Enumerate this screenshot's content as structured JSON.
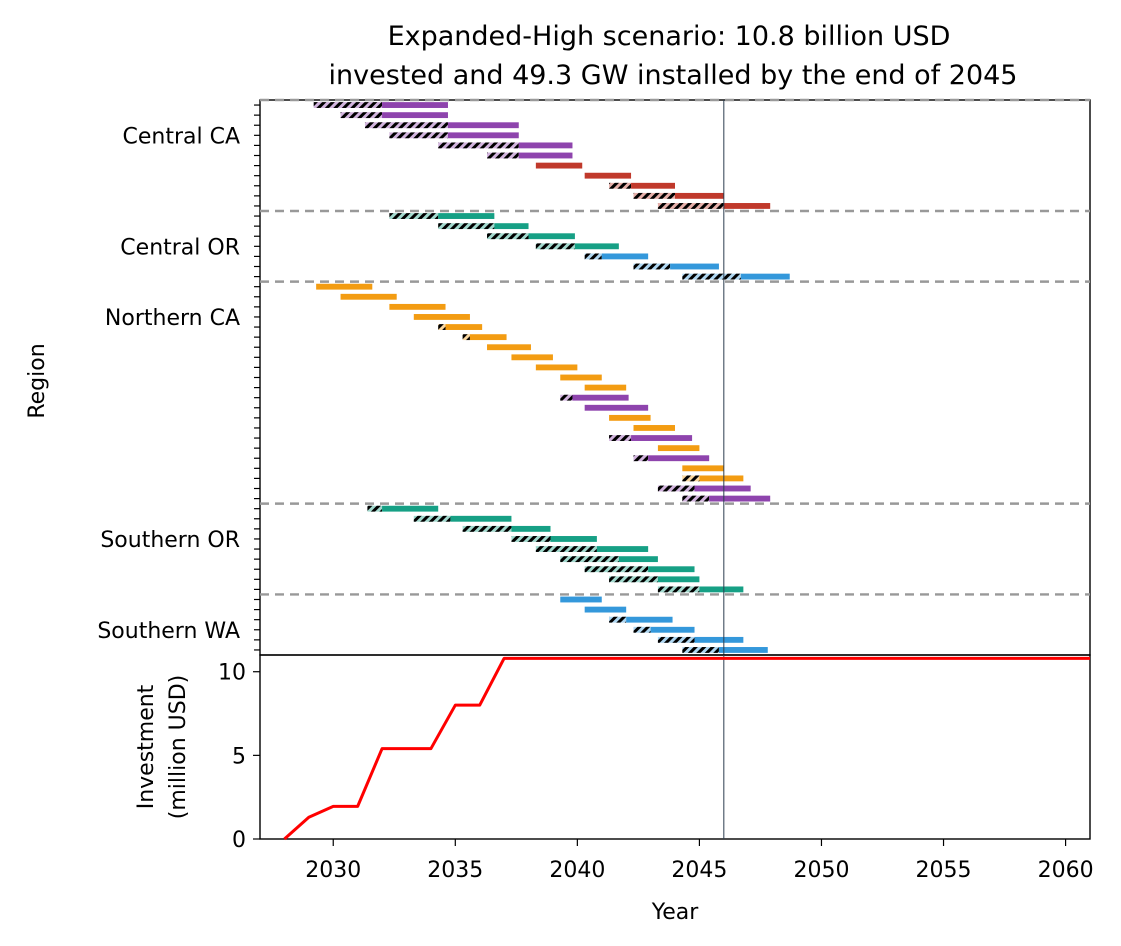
{
  "figure": {
    "title_line1": "Expanded-High scenario: 10.8 billion USD",
    "title_line2": "invested and 49.3 GW installed by the end of 2045"
  },
  "colors": {
    "central_ca": "#8e44ad",
    "central_ca_alt": "#c0392b",
    "central_or": "#16a085",
    "central_or_alt": "#3498db",
    "northern_ca": "#f39c12",
    "northern_ca_alt": "#8e44ad",
    "southern_or": "#16a085",
    "southern_wa": "#3498db",
    "investment_line": "#ff0000",
    "separator": "#999999",
    "marker_line": "#2c3e50"
  },
  "chart_data": [
    {
      "type": "gantt",
      "ylabel": "Region",
      "xlim": [
        2027,
        2061
      ],
      "marker_year": 46,
      "regions": [
        {
          "name": "Central CA",
          "label_row": 3
        },
        {
          "name": "Central OR",
          "label_row": 14
        },
        {
          "name": "Northern CA",
          "label_row": 21
        },
        {
          "name": "Southern OR",
          "label_row": 43
        },
        {
          "name": "Southern WA",
          "label_row": 52
        }
      ],
      "separators": [
        0,
        11,
        18,
        40,
        49
      ],
      "total_rows": 55,
      "tasks": [
        {
          "row": 0,
          "pre_start": 2029.2,
          "start": 2032.0,
          "end": 2034.7,
          "color": "central_ca"
        },
        {
          "row": 1,
          "pre_start": 2030.3,
          "start": 2032.0,
          "end": 2034.7,
          "color": "central_ca"
        },
        {
          "row": 2,
          "pre_start": 2031.3,
          "start": 2034.7,
          "end": 2037.6,
          "color": "central_ca"
        },
        {
          "row": 3,
          "pre_start": 2032.3,
          "start": 2034.7,
          "end": 2037.6,
          "color": "central_ca"
        },
        {
          "row": 4,
          "pre_start": 2034.3,
          "start": 2037.6,
          "end": 2039.8,
          "color": "central_ca"
        },
        {
          "row": 5,
          "pre_start": 2036.3,
          "start": 2037.6,
          "end": 2039.8,
          "color": "central_ca"
        },
        {
          "row": 6,
          "pre_start": 2038.3,
          "start": 2038.3,
          "end": 2040.2,
          "color": "central_ca_alt"
        },
        {
          "row": 7,
          "pre_start": 2040.3,
          "start": 2040.3,
          "end": 2042.2,
          "color": "central_ca_alt"
        },
        {
          "row": 8,
          "pre_start": 2041.3,
          "start": 2042.2,
          "end": 2044.0,
          "color": "central_ca_alt"
        },
        {
          "row": 9,
          "pre_start": 2042.3,
          "start": 2044.0,
          "end": 2046.0,
          "color": "central_ca_alt"
        },
        {
          "row": 10,
          "pre_start": 2043.3,
          "start": 2046.0,
          "end": 2047.9,
          "color": "central_ca_alt"
        },
        {
          "row": 11,
          "pre_start": 2032.3,
          "start": 2034.3,
          "end": 2036.6,
          "color": "central_or"
        },
        {
          "row": 12,
          "pre_start": 2034.3,
          "start": 2036.6,
          "end": 2038.0,
          "color": "central_or"
        },
        {
          "row": 13,
          "pre_start": 2036.3,
          "start": 2038.0,
          "end": 2039.9,
          "color": "central_or"
        },
        {
          "row": 14,
          "pre_start": 2038.3,
          "start": 2039.9,
          "end": 2041.7,
          "color": "central_or"
        },
        {
          "row": 15,
          "pre_start": 2040.3,
          "start": 2041.0,
          "end": 2042.9,
          "color": "central_or_alt"
        },
        {
          "row": 16,
          "pre_start": 2042.3,
          "start": 2043.8,
          "end": 2045.8,
          "color": "central_or_alt"
        },
        {
          "row": 17,
          "pre_start": 2044.3,
          "start": 2046.7,
          "end": 2048.7,
          "color": "central_or_alt"
        },
        {
          "row": 18,
          "pre_start": 2029.3,
          "start": 2029.3,
          "end": 2031.6,
          "color": "northern_ca"
        },
        {
          "row": 19,
          "pre_start": 2030.3,
          "start": 2030.3,
          "end": 2032.6,
          "color": "northern_ca"
        },
        {
          "row": 20,
          "pre_start": 2032.3,
          "start": 2032.3,
          "end": 2034.6,
          "color": "northern_ca"
        },
        {
          "row": 21,
          "pre_start": 2033.3,
          "start": 2033.3,
          "end": 2035.6,
          "color": "northern_ca"
        },
        {
          "row": 22,
          "pre_start": 2034.3,
          "start": 2034.6,
          "end": 2036.1,
          "color": "northern_ca"
        },
        {
          "row": 23,
          "pre_start": 2035.3,
          "start": 2035.6,
          "end": 2037.1,
          "color": "northern_ca"
        },
        {
          "row": 24,
          "pre_start": 2036.3,
          "start": 2036.3,
          "end": 2038.1,
          "color": "northern_ca"
        },
        {
          "row": 25,
          "pre_start": 2037.3,
          "start": 2037.3,
          "end": 2039.0,
          "color": "northern_ca"
        },
        {
          "row": 26,
          "pre_start": 2038.3,
          "start": 2038.3,
          "end": 2040.0,
          "color": "northern_ca"
        },
        {
          "row": 27,
          "pre_start": 2039.3,
          "start": 2039.3,
          "end": 2041.0,
          "color": "northern_ca"
        },
        {
          "row": 28,
          "pre_start": 2040.3,
          "start": 2040.3,
          "end": 2042.0,
          "color": "northern_ca"
        },
        {
          "row": 29,
          "pre_start": 2039.3,
          "start": 2039.8,
          "end": 2042.1,
          "color": "northern_ca_alt"
        },
        {
          "row": 30,
          "pre_start": 2040.3,
          "start": 2040.3,
          "end": 2042.9,
          "color": "northern_ca_alt"
        },
        {
          "row": 31,
          "pre_start": 2041.3,
          "start": 2041.3,
          "end": 2043.0,
          "color": "northern_ca"
        },
        {
          "row": 32,
          "pre_start": 2042.3,
          "start": 2042.3,
          "end": 2044.0,
          "color": "northern_ca"
        },
        {
          "row": 33,
          "pre_start": 2041.3,
          "start": 2042.2,
          "end": 2044.7,
          "color": "northern_ca_alt"
        },
        {
          "row": 34,
          "pre_start": 2043.3,
          "start": 2043.3,
          "end": 2045.0,
          "color": "northern_ca"
        },
        {
          "row": 35,
          "pre_start": 2042.3,
          "start": 2042.9,
          "end": 2045.4,
          "color": "northern_ca_alt"
        },
        {
          "row": 36,
          "pre_start": 2044.3,
          "start": 2044.3,
          "end": 2046.0,
          "color": "northern_ca"
        },
        {
          "row": 37,
          "pre_start": 2044.3,
          "start": 2045.0,
          "end": 2046.8,
          "color": "northern_ca"
        },
        {
          "row": 38,
          "pre_start": 2043.3,
          "start": 2044.8,
          "end": 2047.1,
          "color": "northern_ca_alt"
        },
        {
          "row": 39,
          "pre_start": 2044.3,
          "start": 2045.4,
          "end": 2047.9,
          "color": "northern_ca_alt"
        },
        {
          "row": 40,
          "pre_start": 2031.4,
          "start": 2032.0,
          "end": 2034.3,
          "color": "southern_or"
        },
        {
          "row": 41,
          "pre_start": 2033.3,
          "start": 2034.8,
          "end": 2037.3,
          "color": "southern_or"
        },
        {
          "row": 42,
          "pre_start": 2035.3,
          "start": 2037.3,
          "end": 2038.9,
          "color": "southern_or"
        },
        {
          "row": 43,
          "pre_start": 2037.3,
          "start": 2038.9,
          "end": 2040.8,
          "color": "southern_or"
        },
        {
          "row": 44,
          "pre_start": 2038.3,
          "start": 2040.8,
          "end": 2042.9,
          "color": "southern_or"
        },
        {
          "row": 45,
          "pre_start": 2039.3,
          "start": 2041.7,
          "end": 2043.3,
          "color": "southern_or"
        },
        {
          "row": 46,
          "pre_start": 2040.3,
          "start": 2042.9,
          "end": 2044.8,
          "color": "southern_or"
        },
        {
          "row": 47,
          "pre_start": 2041.3,
          "start": 2043.3,
          "end": 2045.0,
          "color": "southern_or"
        },
        {
          "row": 48,
          "pre_start": 2043.3,
          "start": 2045.0,
          "end": 2046.8,
          "color": "southern_or"
        },
        {
          "row": 49,
          "pre_start": 2039.3,
          "start": 2039.3,
          "end": 2041.0,
          "color": "southern_wa"
        },
        {
          "row": 50,
          "pre_start": 2040.3,
          "start": 2040.3,
          "end": 2042.0,
          "color": "southern_wa"
        },
        {
          "row": 51,
          "pre_start": 2041.3,
          "start": 2042.0,
          "end": 2043.9,
          "color": "southern_wa"
        },
        {
          "row": 52,
          "pre_start": 2042.3,
          "start": 2043.0,
          "end": 2044.8,
          "color": "southern_wa"
        },
        {
          "row": 53,
          "pre_start": 2043.3,
          "start": 2044.8,
          "end": 2046.8,
          "color": "southern_wa"
        },
        {
          "row": 54,
          "pre_start": 2044.3,
          "start": 2045.8,
          "end": 2047.8,
          "color": "southern_wa"
        }
      ]
    },
    {
      "type": "line",
      "xlabel": "Year",
      "ylabel_line1": "Investment",
      "ylabel_line2": "(million USD)",
      "xlim": [
        2027,
        2061
      ],
      "ylim": [
        0,
        11
      ],
      "xticks": [
        2030,
        2035,
        2040,
        2045,
        2050,
        2055,
        2060
      ],
      "yticks": [
        0,
        5,
        10
      ],
      "series": [
        {
          "x": [
            2028.0,
            2029.0,
            2030.0,
            2031.0,
            2032.0,
            2033.0,
            2034.0,
            2035.0,
            2036.0,
            2037.0,
            2061.0
          ],
          "y": [
            0.0,
            1.3,
            1.95,
            1.95,
            5.4,
            5.4,
            5.4,
            8.0,
            8.0,
            10.8,
            10.8
          ]
        }
      ]
    }
  ]
}
